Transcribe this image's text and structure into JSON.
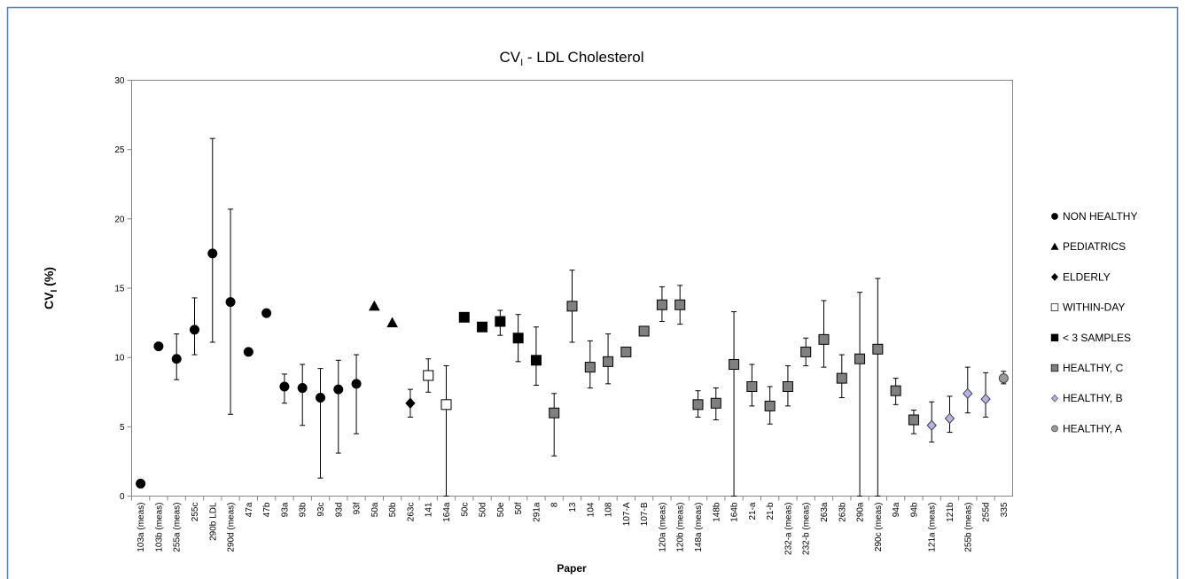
{
  "chart_data": {
    "type": "scatter",
    "title": [
      "CV",
      "I",
      " - LDL Cholesterol"
    ],
    "y_label": [
      "CV",
      "I",
      " (%)"
    ],
    "x_label": "Paper",
    "categories": [
      "103a (meas)",
      "103b (meas)",
      "255a (meas)",
      "255c",
      "290b LDL",
      "290d (meas)",
      "47a",
      "47b",
      "93a",
      "93b",
      "93c",
      "93d",
      "93f",
      "50a",
      "50b",
      "263c",
      "141",
      "164a",
      "50c",
      "50d",
      "50e",
      "50f",
      "291a",
      "8",
      "13",
      "104",
      "108",
      "107-A",
      "107-B",
      "120a (meas)",
      "120b (meas)",
      "148a (meas)",
      "148b",
      "164b",
      "21-a",
      "21-b",
      "232-a (meas)",
      "232-b (meas)",
      "263a",
      "263b",
      "290a",
      "290c (meas)",
      "94a",
      "94b",
      "121a (meas)",
      "121b",
      "255b (meas)",
      "255d",
      "335"
    ],
    "ylim": [
      0,
      30
    ],
    "yticks": [
      0,
      5,
      10,
      15,
      20,
      25,
      30
    ],
    "legend": "right",
    "series": [
      {
        "name": "NON HEALTHY",
        "marker": "circle",
        "color": "#000000",
        "values": [
          0.9,
          10.8,
          9.9,
          12.0,
          17.5,
          14.0,
          10.4,
          13.2,
          7.9,
          7.8,
          7.1,
          7.7,
          8.1,
          null,
          null,
          null,
          null,
          null,
          null,
          null,
          null,
          null,
          null,
          null,
          null,
          null,
          null,
          null,
          null,
          null,
          null,
          null,
          null,
          null,
          null,
          null,
          null,
          null,
          null,
          null,
          null,
          null,
          null,
          null,
          null,
          null,
          null,
          null,
          null
        ],
        "low": [
          null,
          null,
          8.4,
          10.2,
          11.1,
          5.9,
          null,
          null,
          6.7,
          5.1,
          1.3,
          3.1,
          4.5,
          null,
          null,
          null,
          null,
          null,
          null,
          null,
          null,
          null,
          null,
          null,
          null,
          null,
          null,
          null,
          null,
          null,
          null,
          null,
          null,
          null,
          null,
          null,
          null,
          null,
          null,
          null,
          null,
          null,
          null,
          null,
          null,
          null,
          null,
          null,
          null
        ],
        "high": [
          null,
          null,
          11.7,
          14.3,
          25.8,
          20.7,
          null,
          null,
          8.8,
          9.5,
          9.2,
          9.8,
          10.2,
          null,
          null,
          null,
          null,
          null,
          null,
          null,
          null,
          null,
          null,
          null,
          null,
          null,
          null,
          null,
          null,
          null,
          null,
          null,
          null,
          null,
          null,
          null,
          null,
          null,
          null,
          null,
          null,
          null,
          null,
          null,
          null,
          null,
          null,
          null,
          null
        ]
      },
      {
        "name": "PEDIATRICS",
        "marker": "triangle",
        "color": "#000000",
        "values": [
          null,
          null,
          null,
          null,
          null,
          null,
          null,
          null,
          null,
          null,
          null,
          null,
          null,
          13.7,
          12.5,
          null,
          null,
          null,
          null,
          null,
          null,
          null,
          null,
          null,
          null,
          null,
          null,
          null,
          null,
          null,
          null,
          null,
          null,
          null,
          null,
          null,
          null,
          null,
          null,
          null,
          null,
          null,
          null,
          null,
          null,
          null,
          null,
          null,
          null
        ]
      },
      {
        "name": "ELDERLY",
        "marker": "diamond",
        "color": "#000000",
        "values": [
          null,
          null,
          null,
          null,
          null,
          null,
          null,
          null,
          null,
          null,
          null,
          null,
          null,
          null,
          null,
          6.7,
          null,
          null,
          null,
          null,
          null,
          null,
          null,
          null,
          null,
          null,
          null,
          null,
          null,
          null,
          null,
          null,
          null,
          null,
          null,
          null,
          null,
          null,
          null,
          null,
          null,
          null,
          null,
          null,
          null,
          null,
          null,
          null,
          null
        ],
        "low": [
          null,
          null,
          null,
          null,
          null,
          null,
          null,
          null,
          null,
          null,
          null,
          null,
          null,
          null,
          null,
          5.7,
          null,
          null,
          null,
          null,
          null,
          null,
          null,
          null,
          null,
          null,
          null,
          null,
          null,
          null,
          null,
          null,
          null,
          null,
          null,
          null,
          null,
          null,
          null,
          null,
          null,
          null,
          null,
          null,
          null,
          null,
          null,
          null,
          null
        ],
        "high": [
          null,
          null,
          null,
          null,
          null,
          null,
          null,
          null,
          null,
          null,
          null,
          null,
          null,
          null,
          null,
          7.7,
          null,
          null,
          null,
          null,
          null,
          null,
          null,
          null,
          null,
          null,
          null,
          null,
          null,
          null,
          null,
          null,
          null,
          null,
          null,
          null,
          null,
          null,
          null,
          null,
          null,
          null,
          null,
          null,
          null,
          null,
          null,
          null,
          null
        ]
      },
      {
        "name": "WITHIN-DAY",
        "marker": "square",
        "color": "#ffffff",
        "values": [
          null,
          null,
          null,
          null,
          null,
          null,
          null,
          null,
          null,
          null,
          null,
          null,
          null,
          null,
          null,
          null,
          8.7,
          6.6,
          null,
          null,
          null,
          null,
          null,
          null,
          null,
          null,
          null,
          null,
          null,
          null,
          null,
          null,
          null,
          null,
          null,
          null,
          null,
          null,
          null,
          null,
          null,
          null,
          null,
          null,
          null,
          null,
          null,
          null,
          null
        ],
        "low": [
          null,
          null,
          null,
          null,
          null,
          null,
          null,
          null,
          null,
          null,
          null,
          null,
          null,
          null,
          null,
          null,
          7.5,
          0,
          null,
          null,
          null,
          null,
          null,
          null,
          null,
          null,
          null,
          null,
          null,
          null,
          null,
          null,
          null,
          null,
          null,
          null,
          null,
          null,
          null,
          null,
          null,
          null,
          null,
          null,
          null,
          null,
          null,
          null,
          null
        ],
        "high": [
          null,
          null,
          null,
          null,
          null,
          null,
          null,
          null,
          null,
          null,
          null,
          null,
          null,
          null,
          null,
          null,
          9.9,
          9.4,
          null,
          null,
          null,
          null,
          null,
          null,
          null,
          null,
          null,
          null,
          null,
          null,
          null,
          null,
          null,
          null,
          null,
          null,
          null,
          null,
          null,
          null,
          null,
          null,
          null,
          null,
          null,
          null,
          null,
          null,
          null
        ]
      },
      {
        "name": "< 3 SAMPLES",
        "marker": "square",
        "color": "#000000",
        "values": [
          null,
          null,
          null,
          null,
          null,
          null,
          null,
          null,
          null,
          null,
          null,
          null,
          null,
          null,
          null,
          null,
          null,
          null,
          12.9,
          12.2,
          12.6,
          11.4,
          9.8,
          null,
          null,
          null,
          null,
          null,
          null,
          null,
          null,
          null,
          null,
          null,
          null,
          null,
          null,
          null,
          null,
          null,
          null,
          null,
          null,
          null,
          null,
          null,
          null,
          null,
          null
        ],
        "low": [
          null,
          null,
          null,
          null,
          null,
          null,
          null,
          null,
          null,
          null,
          null,
          null,
          null,
          null,
          null,
          null,
          null,
          null,
          null,
          null,
          11.6,
          9.7,
          8.0,
          null,
          null,
          null,
          null,
          null,
          null,
          null,
          null,
          null,
          null,
          null,
          null,
          null,
          null,
          null,
          null,
          null,
          null,
          null,
          null,
          null,
          null,
          null,
          null,
          null,
          null
        ],
        "high": [
          null,
          null,
          null,
          null,
          null,
          null,
          null,
          null,
          null,
          null,
          null,
          null,
          null,
          null,
          null,
          null,
          null,
          null,
          null,
          null,
          13.4,
          13.1,
          12.2,
          null,
          null,
          null,
          null,
          null,
          null,
          null,
          null,
          null,
          null,
          null,
          null,
          null,
          null,
          null,
          null,
          null,
          null,
          null,
          null,
          null,
          null,
          null,
          null,
          null,
          null
        ]
      },
      {
        "name": "HEALTHY, C",
        "marker": "square",
        "color": "#808080",
        "values": [
          null,
          null,
          null,
          null,
          null,
          null,
          null,
          null,
          null,
          null,
          null,
          null,
          null,
          null,
          null,
          null,
          null,
          null,
          null,
          null,
          null,
          null,
          null,
          6.0,
          13.7,
          9.3,
          9.7,
          10.4,
          11.9,
          13.8,
          13.8,
          6.6,
          6.7,
          9.5,
          7.9,
          6.5,
          7.9,
          10.4,
          11.3,
          8.5,
          9.9,
          10.6,
          7.6,
          5.5,
          null,
          null,
          null,
          null,
          null
        ],
        "low": [
          null,
          null,
          null,
          null,
          null,
          null,
          null,
          null,
          null,
          null,
          null,
          null,
          null,
          null,
          null,
          null,
          null,
          null,
          null,
          null,
          null,
          null,
          null,
          2.9,
          11.1,
          7.8,
          8.1,
          null,
          null,
          12.6,
          12.4,
          5.7,
          5.5,
          0,
          6.5,
          5.2,
          6.5,
          9.4,
          9.3,
          7.1,
          0,
          0,
          6.6,
          4.5,
          null,
          null,
          null,
          null,
          null
        ],
        "high": [
          null,
          null,
          null,
          null,
          null,
          null,
          null,
          null,
          null,
          null,
          null,
          null,
          null,
          null,
          null,
          null,
          null,
          null,
          null,
          null,
          null,
          null,
          null,
          7.4,
          16.3,
          11.2,
          11.7,
          null,
          null,
          15.1,
          15.2,
          7.6,
          7.8,
          13.3,
          9.5,
          7.9,
          9.4,
          11.4,
          14.1,
          10.2,
          14.7,
          15.7,
          8.5,
          6.2,
          null,
          null,
          null,
          null,
          null
        ]
      },
      {
        "name": "HEALTHY, B",
        "marker": "diamond",
        "color": "#b3b3e6",
        "values": [
          null,
          null,
          null,
          null,
          null,
          null,
          null,
          null,
          null,
          null,
          null,
          null,
          null,
          null,
          null,
          null,
          null,
          null,
          null,
          null,
          null,
          null,
          null,
          null,
          null,
          null,
          null,
          null,
          null,
          null,
          null,
          null,
          null,
          null,
          null,
          null,
          null,
          null,
          null,
          null,
          null,
          null,
          null,
          null,
          5.1,
          5.6,
          7.4,
          7.0,
          null
        ],
        "low": [
          null,
          null,
          null,
          null,
          null,
          null,
          null,
          null,
          null,
          null,
          null,
          null,
          null,
          null,
          null,
          null,
          null,
          null,
          null,
          null,
          null,
          null,
          null,
          null,
          null,
          null,
          null,
          null,
          null,
          null,
          null,
          null,
          null,
          null,
          null,
          null,
          null,
          null,
          null,
          null,
          null,
          null,
          null,
          null,
          3.9,
          4.6,
          6.0,
          5.7,
          null
        ],
        "high": [
          null,
          null,
          null,
          null,
          null,
          null,
          null,
          null,
          null,
          null,
          null,
          null,
          null,
          null,
          null,
          null,
          null,
          null,
          null,
          null,
          null,
          null,
          null,
          null,
          null,
          null,
          null,
          null,
          null,
          null,
          null,
          null,
          null,
          null,
          null,
          null,
          null,
          null,
          null,
          null,
          null,
          null,
          null,
          null,
          6.8,
          7.2,
          9.3,
          8.9,
          null
        ]
      },
      {
        "name": "HEALTHY, A",
        "marker": "circle",
        "color": "#999999",
        "values": [
          null,
          null,
          null,
          null,
          null,
          null,
          null,
          null,
          null,
          null,
          null,
          null,
          null,
          null,
          null,
          null,
          null,
          null,
          null,
          null,
          null,
          null,
          null,
          null,
          null,
          null,
          null,
          null,
          null,
          null,
          null,
          null,
          null,
          null,
          null,
          null,
          null,
          null,
          null,
          null,
          null,
          null,
          null,
          null,
          null,
          null,
          null,
          null,
          8.5
        ],
        "low": [
          null,
          null,
          null,
          null,
          null,
          null,
          null,
          null,
          null,
          null,
          null,
          null,
          null,
          null,
          null,
          null,
          null,
          null,
          null,
          null,
          null,
          null,
          null,
          null,
          null,
          null,
          null,
          null,
          null,
          null,
          null,
          null,
          null,
          null,
          null,
          null,
          null,
          null,
          null,
          null,
          null,
          null,
          null,
          null,
          null,
          null,
          null,
          null,
          8.1
        ],
        "high": [
          null,
          null,
          null,
          null,
          null,
          null,
          null,
          null,
          null,
          null,
          null,
          null,
          null,
          null,
          null,
          null,
          null,
          null,
          null,
          null,
          null,
          null,
          null,
          null,
          null,
          null,
          null,
          null,
          null,
          null,
          null,
          null,
          null,
          null,
          null,
          null,
          null,
          null,
          null,
          null,
          null,
          null,
          null,
          null,
          null,
          null,
          null,
          null,
          9.0
        ]
      }
    ]
  }
}
